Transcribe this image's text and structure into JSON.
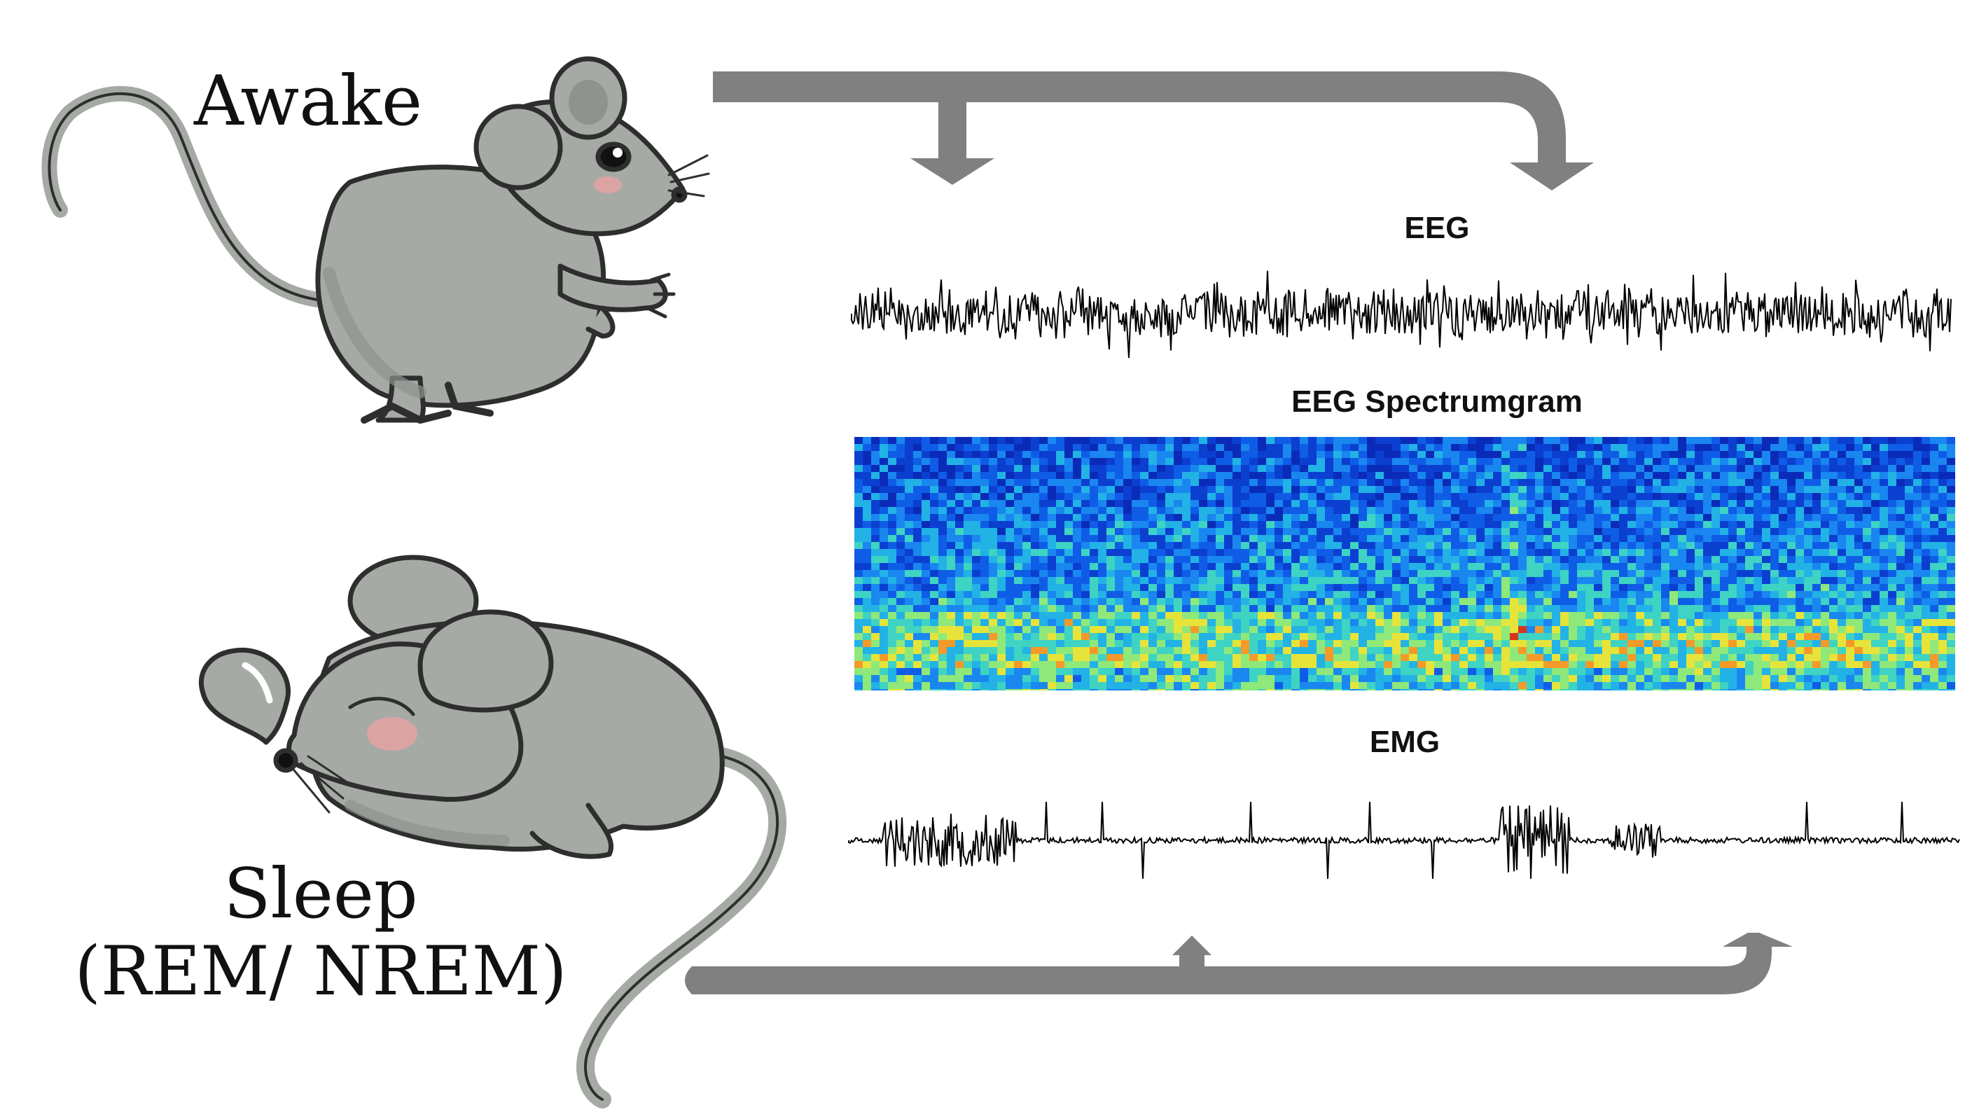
{
  "states": {
    "awake": "Awake",
    "sleep": "Sleep",
    "sleep_sub": "(REM/ NREM)"
  },
  "signals": {
    "eeg": "EEG",
    "spectrogram": "EEG Spectrumgram",
    "emg": "EMG"
  },
  "colors": {
    "arrow": "#808080",
    "mouse_body": "#a6aaa5",
    "mouse_outline": "#2e2e2e",
    "spectro_background": "#0a2bb8"
  },
  "icons": {
    "awake_mouse": "mouse-awake-icon",
    "sleep_mouse": "mouse-sleeping-icon"
  }
}
